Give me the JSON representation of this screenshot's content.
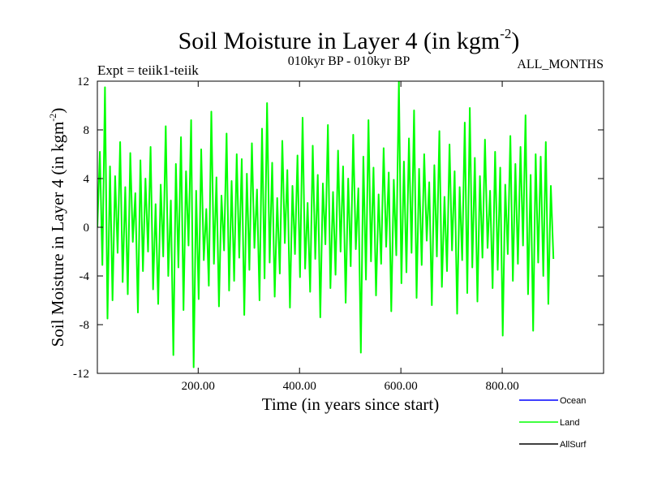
{
  "chart_data": {
    "type": "line",
    "title": "Soil Moisture in Layer 4 (in kgm",
    "title_sup": "-2",
    "title_close": ")",
    "expt_label": "Expt = teiik1-teiik",
    "period_label": "010kyr BP - 010kyr BP",
    "months_label": "ALL_MONTHS",
    "xlabel": "Time (in years since start)",
    "ylabel": "Soil Moisture in Layer 4 (in kgm",
    "ylabel_sup": "-2",
    "ylabel_close": ")",
    "xlim": [
      1,
      1000
    ],
    "ylim": [
      -12,
      12
    ],
    "x_ticks": [
      200,
      400,
      600,
      800
    ],
    "x_tick_labels": [
      "200.00",
      "400.00",
      "600.00",
      "800.00"
    ],
    "y_ticks": [
      -12,
      -8,
      -4,
      0,
      4,
      8,
      12
    ],
    "y_tick_labels": [
      "-12",
      "-8",
      "-4",
      "0",
      "4",
      "8",
      "12"
    ],
    "grid": false,
    "legend_position": "bottom-right, below plot",
    "series": [
      {
        "name": "Ocean",
        "color": "#0000ff",
        "values": []
      },
      {
        "name": "Land",
        "color": "#00ff00",
        "x_start": 1,
        "x_step": 5,
        "values": [
          0.0,
          6.2,
          -3.1,
          11.5,
          -7.5,
          5.0,
          -6.0,
          4.2,
          -2.1,
          7.0,
          -4.5,
          3.3,
          -5.5,
          6.1,
          -1.2,
          2.8,
          -7.0,
          5.5,
          -3.6,
          4.0,
          -2.0,
          6.6,
          -5.1,
          1.9,
          -6.3,
          3.5,
          -2.4,
          8.3,
          -4.0,
          2.2,
          -10.5,
          5.2,
          -3.3,
          7.4,
          -6.8,
          4.6,
          -1.5,
          8.8,
          -11.5,
          3.0,
          -5.9,
          6.4,
          -2.7,
          1.5,
          -4.8,
          9.5,
          -3.0,
          4.1,
          -6.5,
          2.6,
          -1.9,
          7.7,
          -5.2,
          3.8,
          -4.4,
          6.0,
          -2.5,
          5.6,
          -7.2,
          4.4,
          -3.5,
          6.9,
          -1.7,
          3.1,
          -6.0,
          8.1,
          -4.2,
          10.2,
          -2.9,
          5.3,
          -5.7,
          2.4,
          -3.8,
          7.1,
          -1.3,
          4.7,
          -6.6,
          3.4,
          -2.2,
          5.9,
          -4.1,
          9.0,
          -3.4,
          2.0,
          -5.3,
          6.7,
          -2.6,
          4.3,
          -7.4,
          3.6,
          -1.4,
          8.4,
          -5.0,
          2.9,
          -3.9,
          6.3,
          -2.0,
          5.0,
          -6.2,
          4.0,
          -3.2,
          7.6,
          -1.8,
          3.2,
          -10.3,
          5.8,
          -4.3,
          8.8,
          -2.8,
          4.9,
          -5.6,
          2.7,
          -3.0,
          6.5,
          -1.6,
          4.5,
          -6.9,
          3.9,
          -2.3,
          12.0,
          -4.6,
          5.4,
          -3.7,
          7.3,
          -2.1,
          9.6,
          -5.8,
          4.8,
          -3.1,
          6.0,
          -1.1,
          3.7,
          -6.4,
          5.1,
          -2.4,
          7.9,
          -4.9,
          2.5,
          -3.6,
          6.8,
          -1.9,
          4.6,
          -7.1,
          3.3,
          -2.7,
          8.6,
          -5.4,
          9.8,
          -3.3,
          5.7,
          -6.1,
          4.2,
          -2.5,
          7.2,
          -1.7,
          3.0,
          -5.0,
          6.2,
          -3.5,
          4.9,
          -8.9,
          3.5,
          -2.2,
          7.5,
          -4.4,
          5.2,
          -3.0,
          6.6,
          -1.5,
          9.2,
          -5.5,
          4.3,
          -8.5,
          6.0,
          -2.9,
          5.8,
          -4.0,
          7.0,
          -6.3,
          3.4,
          -2.6
        ]
      },
      {
        "name": "AllSurf",
        "color": "#000000",
        "values": []
      }
    ]
  }
}
